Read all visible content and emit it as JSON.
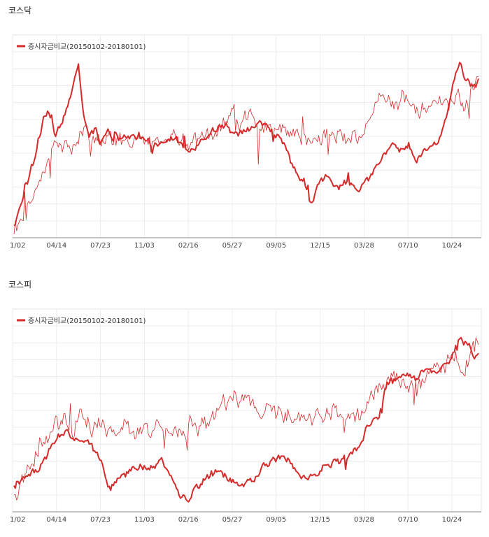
{
  "charts": [
    {
      "title": "코스닥"
    },
    {
      "title": "코스피"
    }
  ],
  "chart_data": [
    {
      "type": "line",
      "title": "코스닥",
      "legend": "증시자금비교(20150102-20180101)",
      "legend_position": "top-left",
      "grid": true,
      "x_ticks": [
        "1/02",
        "04/14",
        "07/23",
        "11/03",
        "02/16",
        "05/27",
        "09/05",
        "12/15",
        "03/28",
        "07/10",
        "10/24"
      ],
      "ylim": [
        0,
        100
      ],
      "series": [
        {
          "name": "thick",
          "color": "#d62b2b",
          "keyframes": [
            [
              0,
              5
            ],
            [
              8,
              22
            ],
            [
              15,
              40
            ],
            [
              22,
              60
            ],
            [
              28,
              62
            ],
            [
              30,
              52
            ],
            [
              35,
              58
            ],
            [
              42,
              72
            ],
            [
              48,
              88
            ],
            [
              52,
              62
            ],
            [
              56,
              50
            ],
            [
              60,
              55
            ],
            [
              64,
              48
            ],
            [
              70,
              53
            ],
            [
              80,
              50
            ],
            [
              90,
              52
            ],
            [
              100,
              48
            ],
            [
              106,
              45
            ],
            [
              110,
              47
            ],
            [
              118,
              50
            ],
            [
              125,
              48
            ],
            [
              130,
              42
            ],
            [
              135,
              46
            ],
            [
              142,
              50
            ],
            [
              150,
              55
            ],
            [
              158,
              57
            ],
            [
              162,
              53
            ],
            [
              168,
              52
            ],
            [
              175,
              55
            ],
            [
              182,
              58
            ],
            [
              190,
              55
            ],
            [
              200,
              50
            ],
            [
              203,
              43
            ],
            [
              208,
              35
            ],
            [
              212,
              33
            ],
            [
              216,
              28
            ],
            [
              220,
              18
            ],
            [
              223,
              17
            ],
            [
              226,
              25
            ],
            [
              232,
              30
            ],
            [
              236,
              28
            ],
            [
              242,
              25
            ],
            [
              248,
              27
            ],
            [
              255,
              23
            ],
            [
              260,
              26
            ],
            [
              266,
              31
            ],
            [
              270,
              36
            ],
            [
              276,
              42
            ],
            [
              282,
              47
            ],
            [
              286,
              45
            ],
            [
              290,
              44
            ],
            [
              294,
              47
            ],
            [
              297,
              40
            ],
            [
              300,
              36
            ],
            [
              305,
              43
            ],
            [
              310,
              43
            ],
            [
              316,
              48
            ],
            [
              320,
              56
            ],
            [
              325,
              72
            ],
            [
              328,
              82
            ],
            [
              332,
              90
            ],
            [
              336,
              82
            ],
            [
              340,
              78
            ],
            [
              343,
              77
            ],
            [
              346,
              80
            ]
          ]
        },
        {
          "name": "thin",
          "color": "#d62b2b",
          "keyframes": [
            [
              0,
              2
            ],
            [
              10,
              12
            ],
            [
              20,
              30
            ],
            [
              30,
              45
            ],
            [
              37,
              50
            ],
            [
              42,
              45
            ],
            [
              50,
              52
            ],
            [
              54,
              55
            ],
            [
              56,
              48
            ],
            [
              65,
              52
            ],
            [
              75,
              48
            ],
            [
              90,
              50
            ],
            [
              105,
              48
            ],
            [
              118,
              50
            ],
            [
              132,
              46
            ],
            [
              145,
              54
            ],
            [
              158,
              59
            ],
            [
              164,
              70
            ],
            [
              168,
              57
            ],
            [
              175,
              63
            ],
            [
              184,
              55
            ],
            [
              195,
              53
            ],
            [
              205,
              52
            ],
            [
              214,
              49
            ],
            [
              222,
              51
            ],
            [
              232,
              53
            ],
            [
              242,
              52
            ],
            [
              250,
              50
            ],
            [
              258,
              53
            ],
            [
              264,
              57
            ],
            [
              268,
              65
            ],
            [
              275,
              69
            ],
            [
              282,
              67
            ],
            [
              290,
              71
            ],
            [
              296,
              66
            ],
            [
              302,
              64
            ],
            [
              310,
              68
            ],
            [
              318,
              70
            ],
            [
              324,
              67
            ],
            [
              330,
              72
            ],
            [
              336,
              68
            ],
            [
              342,
              78
            ],
            [
              346,
              84
            ]
          ]
        }
      ]
    },
    {
      "type": "line",
      "title": "코스피",
      "legend": "증시자금비교(20150102-20180101)",
      "legend_position": "top-left",
      "grid": true,
      "x_ticks": [
        "1/02",
        "04/14",
        "07/23",
        "11/03",
        "02/16",
        "05/27",
        "09/05",
        "12/15",
        "03/28",
        "07/10",
        "10/24"
      ],
      "ylim": [
        0,
        100
      ],
      "series": [
        {
          "name": "thick",
          "color": "#d62b2b",
          "keyframes": [
            [
              0,
              12
            ],
            [
              8,
              15
            ],
            [
              15,
              20
            ],
            [
              22,
              25
            ],
            [
              28,
              32
            ],
            [
              32,
              35
            ],
            [
              38,
              41
            ],
            [
              42,
              37
            ],
            [
              48,
              35
            ],
            [
              55,
              34
            ],
            [
              62,
              28
            ],
            [
              66,
              22
            ],
            [
              70,
              10
            ],
            [
              75,
              12
            ],
            [
              82,
              18
            ],
            [
              90,
              23
            ],
            [
              100,
              21
            ],
            [
              110,
              24
            ],
            [
              118,
              16
            ],
            [
              125,
              6
            ],
            [
              130,
              5
            ],
            [
              135,
              12
            ],
            [
              142,
              16
            ],
            [
              150,
              18
            ],
            [
              158,
              17
            ],
            [
              165,
              13
            ],
            [
              170,
              12
            ],
            [
              178,
              15
            ],
            [
              185,
              22
            ],
            [
              192,
              25
            ],
            [
              200,
              27
            ],
            [
              207,
              24
            ],
            [
              212,
              17
            ],
            [
              218,
              15
            ],
            [
              225,
              18
            ],
            [
              232,
              22
            ],
            [
              240,
              24
            ],
            [
              248,
              27
            ],
            [
              258,
              32
            ],
            [
              262,
              41
            ],
            [
              266,
              44
            ],
            [
              272,
              47
            ],
            [
              276,
              60
            ],
            [
              280,
              66
            ],
            [
              286,
              68
            ],
            [
              290,
              70
            ],
            [
              295,
              69
            ],
            [
              300,
              68
            ],
            [
              305,
              71
            ],
            [
              310,
              73
            ],
            [
              316,
              72
            ],
            [
              320,
              75
            ],
            [
              326,
              76
            ],
            [
              330,
              87
            ],
            [
              334,
              86
            ],
            [
              340,
              85
            ],
            [
              343,
              78
            ],
            [
              346,
              80
            ]
          ]
        },
        {
          "name": "thin",
          "color": "#d62b2b",
          "keyframes": [
            [
              0,
              8
            ],
            [
              10,
              20
            ],
            [
              20,
              32
            ],
            [
              30,
              42
            ],
            [
              37,
              46
            ],
            [
              45,
              40
            ],
            [
              50,
              50
            ],
            [
              55,
              48
            ],
            [
              58,
              44
            ],
            [
              65,
              45
            ],
            [
              75,
              41
            ],
            [
              90,
              40
            ],
            [
              110,
              44
            ],
            [
              125,
              42
            ],
            [
              140,
              43
            ],
            [
              150,
              48
            ],
            [
              158,
              55
            ],
            [
              164,
              62
            ],
            [
              168,
              56
            ],
            [
              175,
              57
            ],
            [
              184,
              51
            ],
            [
              195,
              50
            ],
            [
              205,
              46
            ],
            [
              214,
              48
            ],
            [
              222,
              46
            ],
            [
              232,
              50
            ],
            [
              242,
              48
            ],
            [
              250,
              45
            ],
            [
              258,
              49
            ],
            [
              266,
              58
            ],
            [
              270,
              62
            ],
            [
              276,
              67
            ],
            [
              282,
              70
            ],
            [
              290,
              64
            ],
            [
              300,
              66
            ],
            [
              310,
              69
            ],
            [
              318,
              72
            ],
            [
              324,
              75
            ],
            [
              330,
              78
            ],
            [
              336,
              73
            ],
            [
              342,
              82
            ],
            [
              346,
              88
            ]
          ]
        }
      ]
    }
  ]
}
